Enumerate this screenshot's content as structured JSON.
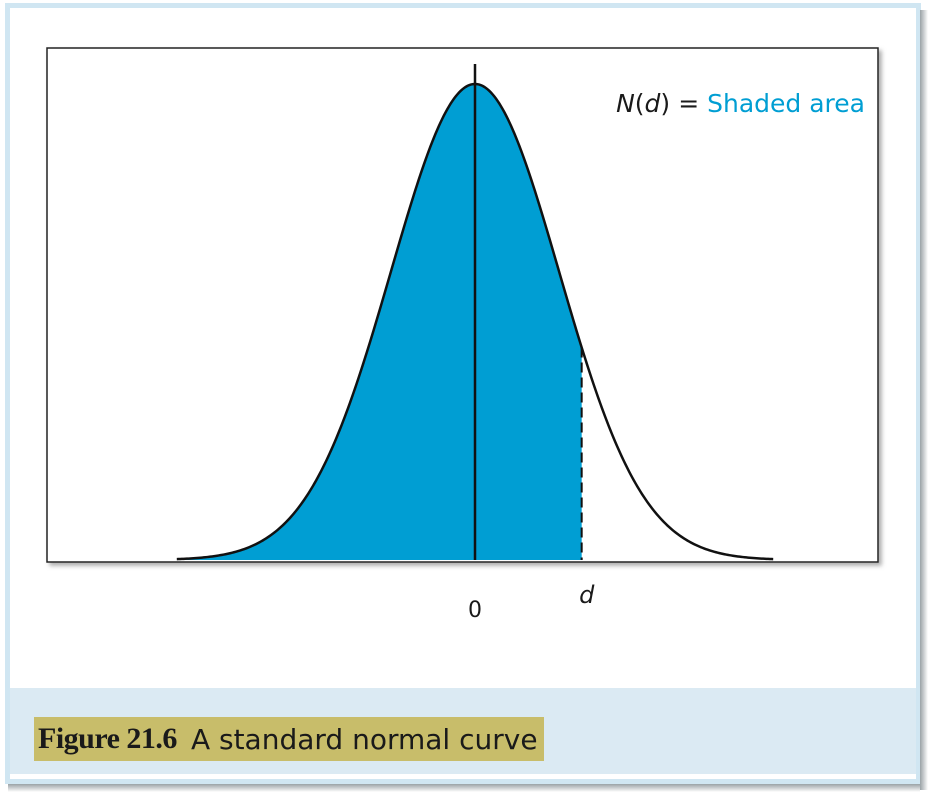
{
  "figure": {
    "label": "Figure 21.6",
    "title": "A standard normal curve"
  },
  "colors": {
    "shade": "#009ed3",
    "accent_text": "#009ed3",
    "frame": "#d0e6f2",
    "caption_bg": "#c8bd6a",
    "caption_band": "#dbeaf3"
  },
  "chart_data": {
    "type": "area",
    "distribution": "standard normal",
    "mean": 0,
    "sd": 1,
    "x_range": [
      -3.55,
      3.55
    ],
    "shade_from": -3.55,
    "shade_to": "d",
    "d_value": 1.27,
    "grid": false,
    "legend": "none",
    "annotation": {
      "prefix": "N",
      "paren_open": "(",
      "variable": "d",
      "paren_close": ")",
      "equals": "=",
      "highlight": "Shaded area"
    },
    "tick_labels": {
      "zero": "0",
      "d": "d"
    },
    "xlabel": "",
    "ylabel": ""
  }
}
